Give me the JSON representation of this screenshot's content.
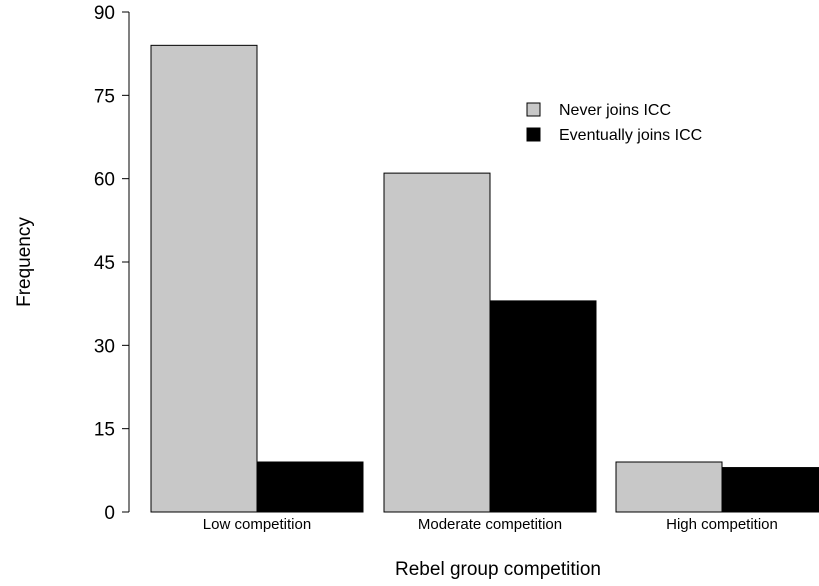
{
  "chart_data": {
    "type": "bar",
    "title": "",
    "xlabel": "Rebel group competition",
    "ylabel": "Frequency",
    "ylim": [
      0,
      90
    ],
    "yticks": [
      0,
      15,
      30,
      45,
      60,
      75,
      90
    ],
    "categories": [
      "Low competition",
      "Moderate competition",
      "High competition"
    ],
    "series": [
      {
        "name": "Never joins ICC",
        "values": [
          84,
          61,
          9
        ],
        "color": "#c8c8c8"
      },
      {
        "name": "Eventually joins ICC",
        "values": [
          9,
          38,
          8
        ],
        "color": "#000000"
      }
    ],
    "legend": {
      "position": "top-right"
    },
    "grid": false
  }
}
